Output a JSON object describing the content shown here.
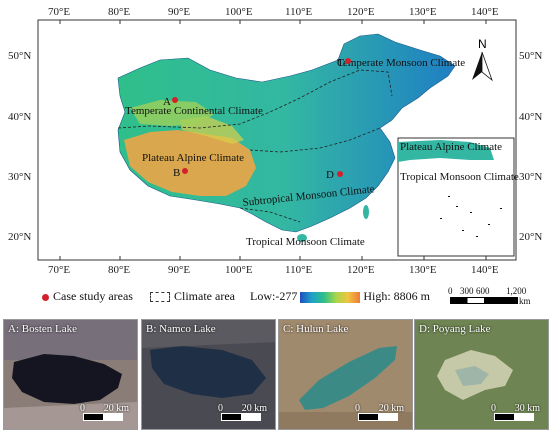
{
  "map": {
    "lon_labels": [
      "70°E",
      "80°E",
      "90°E",
      "100°E",
      "110°E",
      "120°E",
      "130°E",
      "140°E"
    ],
    "lat_labels": [
      "50°N",
      "40°N",
      "30°N",
      "20°N"
    ],
    "north_label": "N",
    "climates": {
      "temperate_monsoon": "Temperate Monsoon Climate",
      "temperate_continental": "Temperate Continental Climate",
      "plateau_alpine": "Plateau Alpine Climate",
      "subtropical_monsoon": "Subtropical Monsoon Climate",
      "tropical_monsoon": "Tropical Monsoon Climate",
      "inset_plateau_alpine": "Plateau Alpine Climate",
      "inset_tropical_monsoon": "Tropical Monsoon Climate"
    },
    "sites": [
      "A",
      "B",
      "C",
      "D"
    ],
    "colors": {
      "site": "#d4202a",
      "low": "#1f4fbf",
      "high": "#ef7a3a"
    }
  },
  "legend": {
    "case_study": "Case study areas",
    "climate_area": "Climate area",
    "low": "Low:-277",
    "high": "High: 8806 m"
  },
  "scale": {
    "l0": "0",
    "l1": "300",
    "l2": "600",
    "l3": "1,200",
    "unit": "km"
  },
  "panels": [
    {
      "title": "A: Bosten Lake",
      "s0": "0",
      "s1": "20 km"
    },
    {
      "title": "B: Namco Lake",
      "s0": "0",
      "s1": "20 km"
    },
    {
      "title": "C: Hulun Lake",
      "s0": "0",
      "s1": "20 km"
    },
    {
      "title": "D: Poyang Lake",
      "s0": "0",
      "s1": "30 km"
    }
  ]
}
